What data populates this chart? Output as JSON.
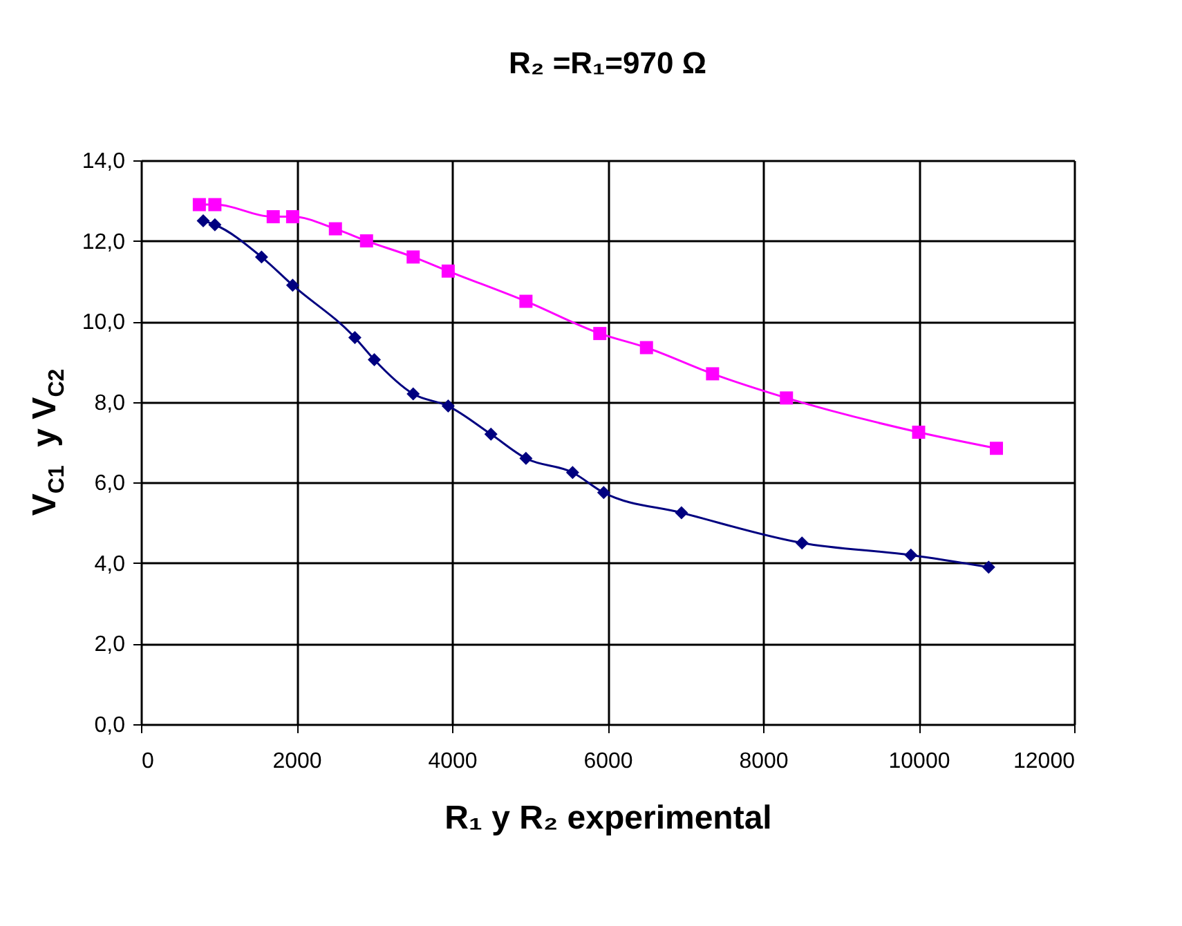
{
  "chart_data": {
    "type": "line",
    "title": "R₂ =R₁=970 Ω",
    "xlabel": "R₁ y R₂ experimental",
    "ylabel": "V$_{C1}$  y V$_{C2}$",
    "grid": true,
    "xlim": [
      0,
      12000
    ],
    "xticks": [
      0,
      2000,
      4000,
      6000,
      8000,
      10000,
      12000
    ],
    "ylim": [
      0,
      14
    ],
    "yticks": [
      {
        "value": 0,
        "label": "0,0"
      },
      {
        "value": 2,
        "label": "2,0"
      },
      {
        "value": 4,
        "label": "4,0"
      },
      {
        "value": 6,
        "label": "6,0"
      },
      {
        "value": 8,
        "label": "8,0"
      },
      {
        "value": 10,
        "label": "10,0"
      },
      {
        "value": 12,
        "label": "12,0"
      },
      {
        "value": 14,
        "label": "14,0"
      }
    ],
    "series": [
      {
        "color": "#000080",
        "marker": "diamond",
        "x": [
          800,
          950,
          1550,
          1950,
          2750,
          3000,
          3500,
          3950,
          4500,
          4950,
          5550,
          5950,
          6950,
          8500,
          9900,
          10900
        ],
        "values": [
          12.5,
          12.4,
          11.6,
          10.9,
          9.6,
          9.05,
          8.2,
          7.9,
          7.2,
          6.6,
          6.25,
          5.75,
          5.25,
          4.5,
          4.2,
          3.9
        ]
      },
      {
        "color": "#ff00ff",
        "marker": "square",
        "x": [
          750,
          950,
          1700,
          1950,
          2500,
          2900,
          3500,
          3950,
          4950,
          5900,
          6500,
          7350,
          8300,
          10000,
          11000
        ],
        "values": [
          12.9,
          12.9,
          12.6,
          12.6,
          12.3,
          12.0,
          11.6,
          11.25,
          10.5,
          9.7,
          9.35,
          8.7,
          8.1,
          7.25,
          6.85
        ]
      }
    ]
  }
}
